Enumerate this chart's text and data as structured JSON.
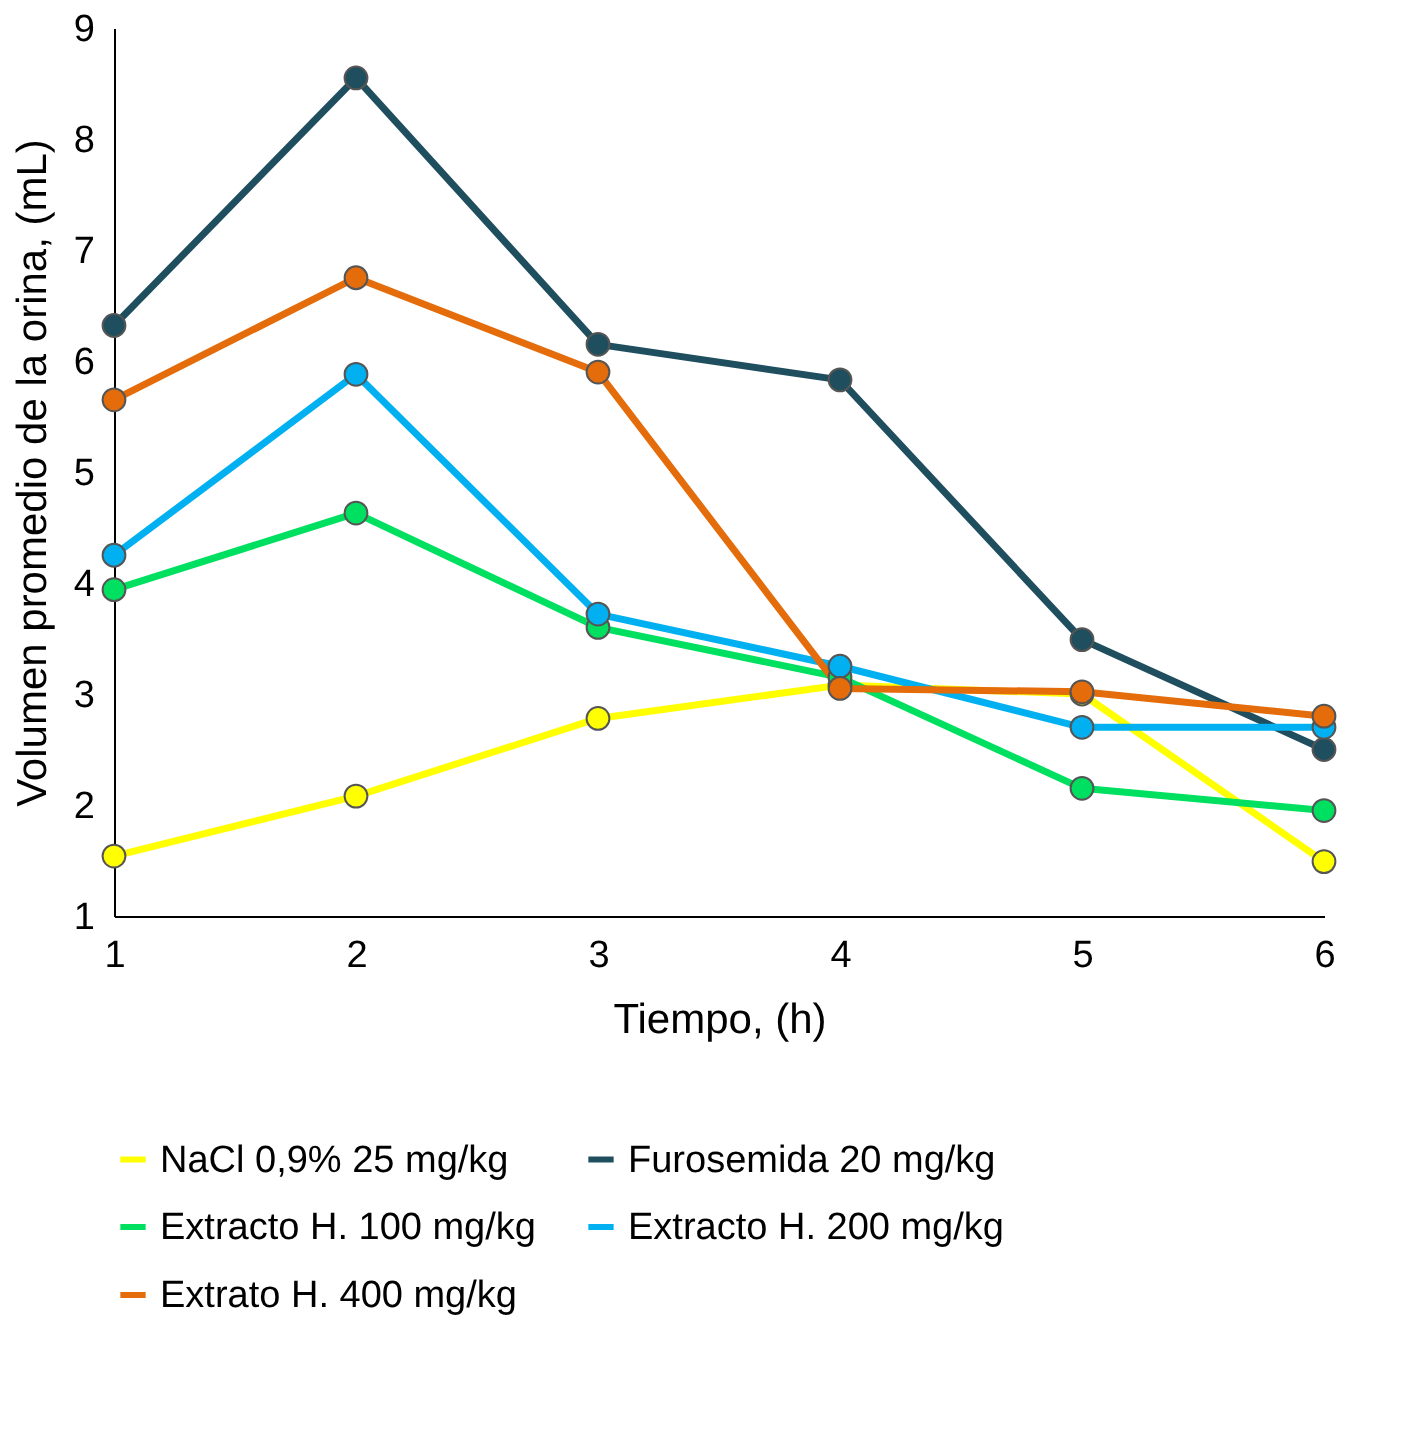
{
  "chart_data": {
    "type": "line",
    "xlabel": "Tiempo, (h)",
    "ylabel": "Volumen promedio de la orina, (mL)",
    "x": [
      1,
      2,
      3,
      4,
      5,
      6
    ],
    "xlim": [
      1,
      6
    ],
    "xticks": [
      1,
      2,
      3,
      4,
      5,
      6
    ],
    "ylim": [
      1,
      9
    ],
    "yticks": [
      1,
      2,
      3,
      4,
      5,
      6,
      7,
      8,
      9
    ],
    "grid": false,
    "legend": "bottom",
    "marker": "circle",
    "line_style": "solid",
    "series": [
      {
        "name": "NaCl 0,9% 25 mg/kg",
        "color": "#ffff00",
        "values": [
          1.54,
          2.08,
          2.78,
          3.08,
          3.0,
          1.49
        ]
      },
      {
        "name": "Furosemida 20 mg/kg",
        "color": "#1f4e5f",
        "values": [
          6.32,
          8.55,
          6.15,
          5.83,
          3.49,
          2.5
        ]
      },
      {
        "name": "Extracto H. 100 mg/kg",
        "color": "#00e060",
        "values": [
          3.94,
          4.63,
          3.6,
          3.15,
          2.15,
          1.95
        ]
      },
      {
        "name": "Extracto H. 200 mg/kg",
        "color": "#00b0f0",
        "values": [
          4.25,
          5.88,
          3.72,
          3.25,
          2.7,
          2.7
        ]
      },
      {
        "name": "Extrato H. 400 mg/kg",
        "color": "#e46c0a",
        "values": [
          5.65,
          6.75,
          5.9,
          3.05,
          3.02,
          2.8
        ]
      }
    ]
  }
}
